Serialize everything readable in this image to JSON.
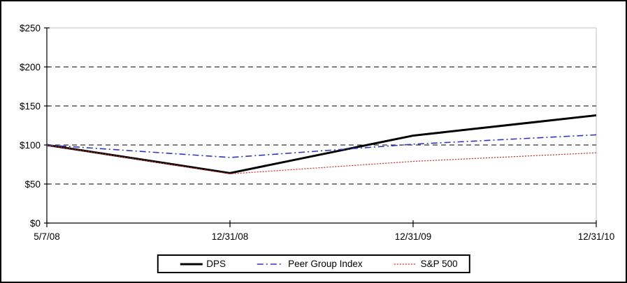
{
  "chart_data": {
    "type": "line",
    "title": "",
    "xlabel": "",
    "ylabel": "",
    "categories": [
      "5/7/08",
      "12/31/08",
      "12/31/09",
      "12/31/10"
    ],
    "series": [
      {
        "name": "DPS",
        "values": [
          100,
          64,
          112,
          138
        ],
        "color": "#000000",
        "style": "solid",
        "width": 3
      },
      {
        "name": "Peer Group Index",
        "values": [
          100,
          84,
          101,
          113
        ],
        "color": "#3333bb",
        "style": "dash-dot",
        "width": 1.6
      },
      {
        "name": "S&P 500",
        "values": [
          100,
          63,
          79,
          90
        ],
        "color": "#dd2222",
        "style": "dot",
        "width": 1.2
      }
    ],
    "ylim": [
      0,
      250
    ],
    "y_step": 50,
    "y_tick_prefix": "$",
    "y_tick_labels": [
      "$0",
      "$50",
      "$100",
      "$150",
      "$200",
      "$250"
    ],
    "grid": "dashed horizontal gridlines",
    "legend_position": "bottom center, boxed"
  },
  "frame": {
    "background": "#ffffff",
    "outer_border_color": "#000000",
    "plot_border_color": "#c0c0c0",
    "gridline_color": "#000000",
    "axis_color": "#000000"
  }
}
